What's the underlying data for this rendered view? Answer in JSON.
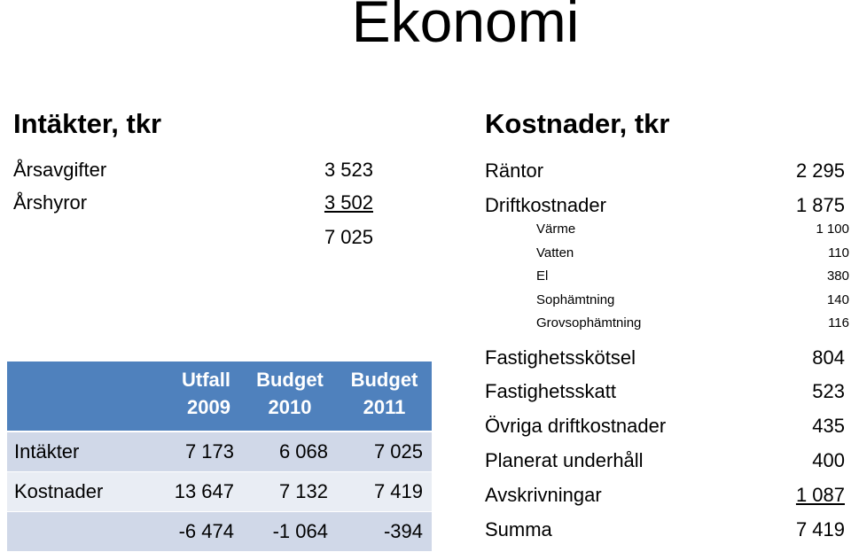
{
  "title": "Ekonomi",
  "income": {
    "heading": "Intäkter, tkr",
    "items": [
      {
        "label": "Årsavgifter",
        "value": "3 523"
      },
      {
        "label": "Årshyror",
        "value": "3 502"
      }
    ],
    "total": "7 025"
  },
  "costs": {
    "heading": "Kostnader, tkr",
    "items": [
      {
        "label": "Räntor",
        "value": "2 295"
      },
      {
        "label": "Driftkostnader",
        "value": "1 875"
      }
    ],
    "sub_items": [
      {
        "label": "Värme",
        "value": "1 100"
      },
      {
        "label": "Vatten",
        "value": "110"
      },
      {
        "label": "El",
        "value": "380"
      },
      {
        "label": "Sophämtning",
        "value": "140"
      },
      {
        "label": "Grovsophämtning",
        "value": "116"
      }
    ],
    "more_items": [
      {
        "label": "Fastighetsskötsel",
        "value": "804"
      },
      {
        "label": "Fastighetsskatt",
        "value": "523"
      },
      {
        "label": "Övriga driftkostnader",
        "value": "435"
      },
      {
        "label": "Planerat underhåll",
        "value": "400"
      },
      {
        "label": "Avskrivningar",
        "value": "1 087"
      }
    ],
    "total_label": "Summa",
    "total_value": "7 419"
  },
  "table": {
    "headers": [
      {
        "line1": "Utfall",
        "line2": "2009"
      },
      {
        "line1": "Budget",
        "line2": "2010"
      },
      {
        "line1": "Budget",
        "line2": "2011"
      }
    ],
    "rows": [
      {
        "label": "Intäkter",
        "values": [
          "7 173",
          "6 068",
          "7 025"
        ]
      },
      {
        "label": "Kostnader",
        "values": [
          "13 647",
          "7 132",
          "7 419"
        ]
      },
      {
        "label": "",
        "values": [
          "-6 474",
          "-1 064",
          "-394"
        ]
      }
    ]
  },
  "colors": {
    "header_bg": "#4f81bd",
    "row_dark": "#d0d8e8",
    "row_light": "#e9edf4"
  }
}
